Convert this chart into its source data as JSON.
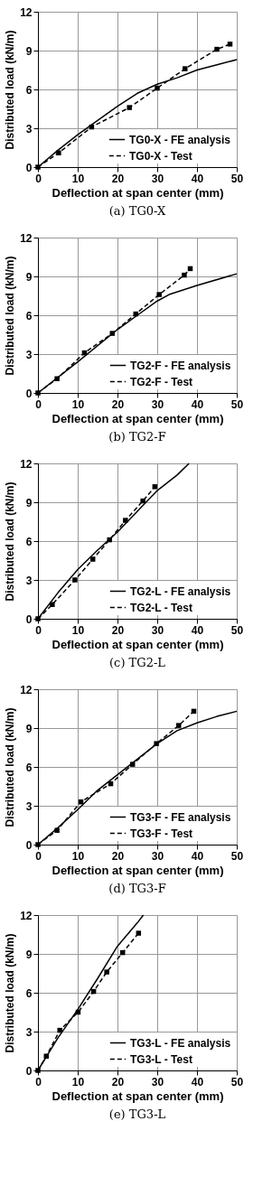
{
  "chart_data": [
    {
      "type": "line",
      "title": "(a) TG0-X",
      "xlabel": "Deflection at span center (mm)",
      "ylabel": "Distributed load (kN/m)",
      "xlim": [
        0,
        50
      ],
      "xticks": [
        0,
        10,
        20,
        30,
        40,
        50
      ],
      "ylim": [
        0,
        12
      ],
      "yticks": [
        0,
        3,
        6,
        9,
        12
      ],
      "grid": true,
      "legend": "bottom right",
      "series": [
        {
          "name": "TG0-X - FE analysis",
          "color": "#000000",
          "line_style": "solid",
          "marker": "none",
          "x": [
            0,
            5,
            10,
            15,
            20,
            25,
            30,
            35,
            40,
            45,
            50
          ],
          "values": [
            0,
            1.3,
            2.5,
            3.6,
            4.7,
            5.7,
            6.4,
            6.9,
            7.5,
            7.9,
            8.3
          ]
        },
        {
          "name": "TG0-X - Test",
          "color": "#000000",
          "line_style": "dashed",
          "marker": "square",
          "x": [
            0,
            5.2,
            13.5,
            23,
            30,
            37,
            45,
            48.3
          ],
          "values": [
            0,
            1.1,
            3.1,
            4.6,
            6.1,
            7.6,
            9.1,
            9.5
          ]
        }
      ]
    },
    {
      "type": "line",
      "title": "(b) TG2-F",
      "xlabel": "Deflection at span center (mm)",
      "ylabel": "Distributed load (kN/m)",
      "xlim": [
        0,
        50
      ],
      "xticks": [
        0,
        10,
        20,
        30,
        40,
        50
      ],
      "ylim": [
        0,
        12
      ],
      "yticks": [
        0,
        3,
        6,
        9,
        12
      ],
      "grid": true,
      "legend": "bottom right",
      "series": [
        {
          "name": "TG2-F - FE analysis",
          "color": "#000000",
          "line_style": "solid",
          "marker": "none",
          "x": [
            0,
            10,
            20,
            25,
            30,
            33,
            40,
            50
          ],
          "values": [
            0,
            2.4,
            4.9,
            6.0,
            7.1,
            7.6,
            8.3,
            9.2
          ]
        },
        {
          "name": "TG2-F - Test",
          "color": "#000000",
          "line_style": "dashed",
          "marker": "square",
          "x": [
            0,
            4.8,
            11.7,
            18.7,
            24.6,
            30.5,
            36.8,
            38.3
          ],
          "values": [
            0,
            1.1,
            3.1,
            4.6,
            6.1,
            7.6,
            9.1,
            9.6
          ]
        }
      ]
    },
    {
      "type": "line",
      "title": "(c) TG2-L",
      "xlabel": "Deflection at span center (mm)",
      "ylabel": "Distributed load (kN/m)",
      "xlim": [
        0,
        50
      ],
      "xticks": [
        0,
        10,
        20,
        30,
        40,
        50
      ],
      "ylim": [
        0,
        12
      ],
      "yticks": [
        0,
        3,
        6,
        9,
        12
      ],
      "grid": true,
      "legend": "bottom right",
      "series": [
        {
          "name": "TG2-L - FE analysis",
          "color": "#000000",
          "line_style": "solid",
          "marker": "none",
          "x": [
            0,
            5,
            10,
            15,
            20,
            25,
            30,
            35,
            38
          ],
          "values": [
            0,
            2.0,
            3.8,
            5.3,
            6.7,
            8.3,
            9.9,
            11.1,
            12
          ]
        },
        {
          "name": "TG2-L - Test",
          "color": "#000000",
          "line_style": "dashed",
          "marker": "square",
          "x": [
            0,
            3.6,
            9.3,
            13.8,
            18,
            22,
            26.4,
            29.4
          ],
          "values": [
            0,
            1.1,
            3.0,
            4.6,
            6.1,
            7.6,
            9.1,
            10.2
          ]
        }
      ]
    },
    {
      "type": "line",
      "title": "(d) TG3-F",
      "xlabel": "Deflection at span center (mm)",
      "ylabel": "Distributed load (kN/m)",
      "xlim": [
        0,
        50
      ],
      "xticks": [
        0,
        10,
        20,
        30,
        40,
        50
      ],
      "ylim": [
        0,
        12
      ],
      "yticks": [
        0,
        3,
        6,
        9,
        12
      ],
      "grid": true,
      "legend": "bottom right",
      "series": [
        {
          "name": "TG3-F - FE analysis",
          "color": "#000000",
          "line_style": "solid",
          "marker": "none",
          "x": [
            0,
            5,
            10,
            15,
            20,
            25,
            30,
            35,
            40,
            45,
            50
          ],
          "values": [
            0,
            1.3,
            2.7,
            4.2,
            5.4,
            6.6,
            7.8,
            8.8,
            9.4,
            9.9,
            10.3
          ]
        },
        {
          "name": "TG3-F - Test",
          "color": "#000000",
          "line_style": "dashed",
          "marker": "square",
          "x": [
            0,
            4.8,
            10.8,
            18.3,
            23.8,
            29.8,
            35.4,
            39.2
          ],
          "values": [
            0,
            1.1,
            3.3,
            4.7,
            6.2,
            7.8,
            9.2,
            10.3
          ]
        }
      ]
    },
    {
      "type": "line",
      "title": "(e) TG3-L",
      "xlabel": "Deflection at span center (mm)",
      "ylabel": "Distributed load (kN/m)",
      "xlim": [
        0,
        50
      ],
      "xticks": [
        0,
        10,
        20,
        30,
        40,
        50
      ],
      "ylim": [
        0,
        12
      ],
      "yticks": [
        0,
        3,
        6,
        9,
        12
      ],
      "grid": true,
      "legend": "bottom right",
      "series": [
        {
          "name": "TG3-L - FE analysis",
          "color": "#000000",
          "line_style": "solid",
          "marker": "none",
          "x": [
            0,
            5,
            10,
            15,
            20,
            25,
            26.5
          ],
          "values": [
            0,
            2.5,
            4.7,
            7.1,
            9.6,
            11.4,
            12
          ]
        },
        {
          "name": "TG3-L - Test",
          "color": "#000000",
          "line_style": "dashed",
          "marker": "square",
          "x": [
            0,
            2.1,
            5.5,
            10.1,
            14,
            17.3,
            21.3,
            25.3
          ],
          "values": [
            0,
            1.1,
            3.1,
            4.5,
            6.1,
            7.6,
            9.1,
            10.6
          ]
        }
      ]
    }
  ]
}
